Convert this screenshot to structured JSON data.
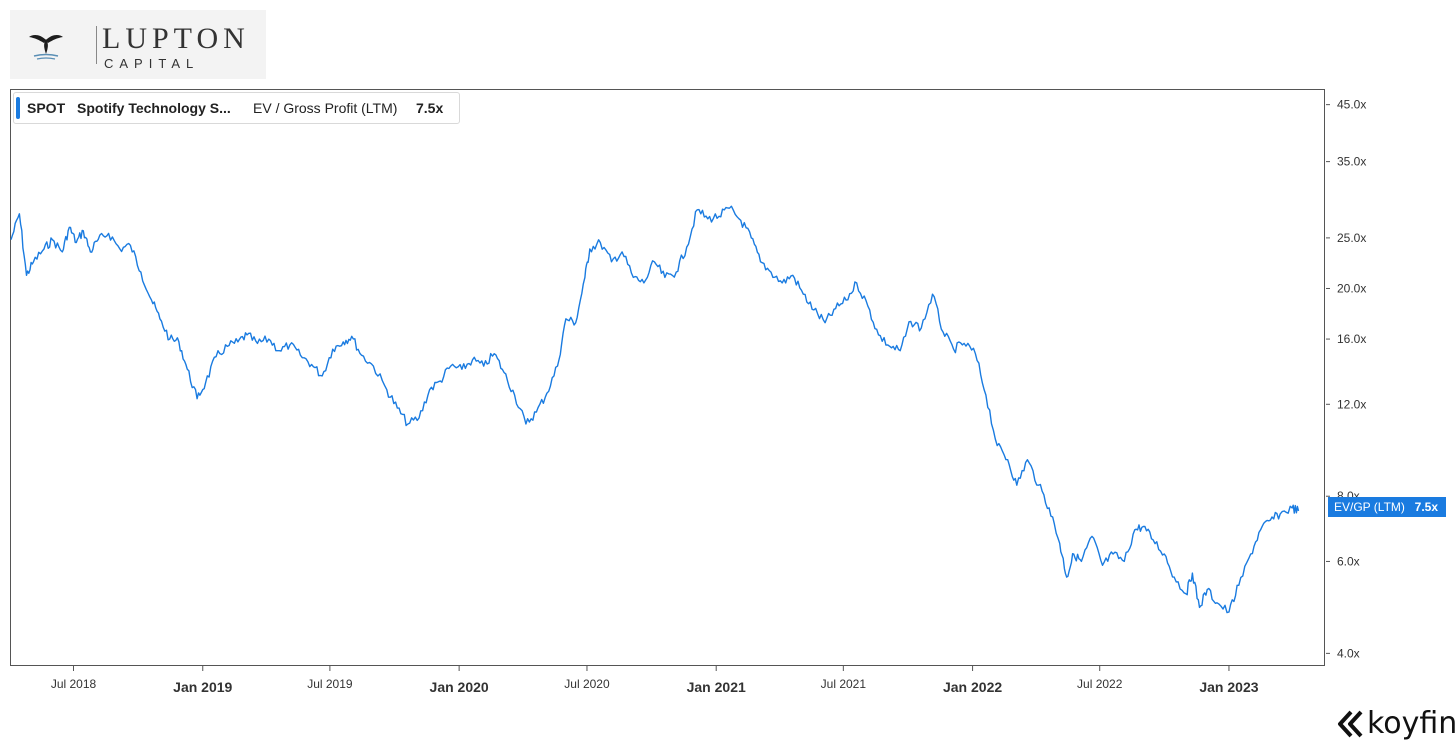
{
  "header": {
    "logo_word_top": "LUPTON",
    "logo_word_bottom": "CAPITAL"
  },
  "legend": {
    "ticker": "SPOT",
    "company": "Spotify Technology S...",
    "metric": "EV / Gross Profit (LTM)",
    "value": "7.5x"
  },
  "last_value_tag": {
    "label": "EV/GP (LTM)",
    "value": "7.5x"
  },
  "footer": {
    "brand": "koyfin"
  },
  "colors": {
    "line": "#1a7be0",
    "axis": "#555555",
    "tick_text": "#333333"
  },
  "chart_data": {
    "type": "line",
    "title": "",
    "xlabel": "",
    "ylabel": "",
    "y_scale": "log",
    "ylim": [
      3.8,
      48
    ],
    "xlim": [
      "2018-04-03",
      "2023-04-15"
    ],
    "grid": false,
    "legend_position": "top-left",
    "y_ticks": [
      {
        "value": 45,
        "label": "45.0x"
      },
      {
        "value": 35,
        "label": "35.0x"
      },
      {
        "value": 25,
        "label": "25.0x"
      },
      {
        "value": 20,
        "label": "20.0x"
      },
      {
        "value": 16,
        "label": "16.0x"
      },
      {
        "value": 12,
        "label": "12.0x"
      },
      {
        "value": 8,
        "label": "8.0x"
      },
      {
        "value": 6,
        "label": "6.0x"
      },
      {
        "value": 4,
        "label": "4.0x"
      }
    ],
    "x_ticks": [
      {
        "date": "2018-07-01",
        "label": "Jul 2018",
        "major": false
      },
      {
        "date": "2019-01-01",
        "label": "Jan 2019",
        "major": true
      },
      {
        "date": "2019-07-01",
        "label": "Jul 2019",
        "major": false
      },
      {
        "date": "2020-01-01",
        "label": "Jan 2020",
        "major": true
      },
      {
        "date": "2020-07-01",
        "label": "Jul 2020",
        "major": false
      },
      {
        "date": "2021-01-01",
        "label": "Jan 2021",
        "major": true
      },
      {
        "date": "2021-07-01",
        "label": "Jul 2021",
        "major": false
      },
      {
        "date": "2022-01-01",
        "label": "Jan 2022",
        "major": true
      },
      {
        "date": "2022-07-01",
        "label": "Jul 2022",
        "major": false
      },
      {
        "date": "2023-01-01",
        "label": "Jan 2023",
        "major": true
      }
    ],
    "series": [
      {
        "name": "EV / Gross Profit (LTM)",
        "points": [
          [
            "2018-04-03",
            24.8
          ],
          [
            "2018-04-15",
            27.8
          ],
          [
            "2018-04-25",
            21.2
          ],
          [
            "2018-05-05",
            22.5
          ],
          [
            "2018-05-20",
            23.8
          ],
          [
            "2018-06-01",
            24.8
          ],
          [
            "2018-06-15",
            23.5
          ],
          [
            "2018-06-25",
            26.2
          ],
          [
            "2018-07-05",
            24.5
          ],
          [
            "2018-07-15",
            25.8
          ],
          [
            "2018-07-25",
            23.5
          ],
          [
            "2018-08-05",
            24.8
          ],
          [
            "2018-08-20",
            25.5
          ],
          [
            "2018-09-05",
            23.8
          ],
          [
            "2018-09-20",
            24.2
          ],
          [
            "2018-10-05",
            21.5
          ],
          [
            "2018-10-20",
            19.0
          ],
          [
            "2018-11-01",
            17.5
          ],
          [
            "2018-11-15",
            16.0
          ],
          [
            "2018-11-28",
            15.8
          ],
          [
            "2018-12-10",
            14.0
          ],
          [
            "2018-12-24",
            12.3
          ],
          [
            "2019-01-05",
            13.2
          ],
          [
            "2019-01-20",
            14.8
          ],
          [
            "2019-02-05",
            15.5
          ],
          [
            "2019-02-20",
            15.8
          ],
          [
            "2019-03-05",
            16.3
          ],
          [
            "2019-03-20",
            15.7
          ],
          [
            "2019-04-05",
            16.0
          ],
          [
            "2019-04-20",
            15.2
          ],
          [
            "2019-05-05",
            15.6
          ],
          [
            "2019-05-20",
            14.9
          ],
          [
            "2019-06-05",
            14.3
          ],
          [
            "2019-06-20",
            13.6
          ],
          [
            "2019-07-05",
            15.3
          ],
          [
            "2019-07-20",
            15.8
          ],
          [
            "2019-08-01",
            16.2
          ],
          [
            "2019-08-15",
            14.9
          ],
          [
            "2019-09-01",
            14.2
          ],
          [
            "2019-09-20",
            12.8
          ],
          [
            "2019-10-05",
            11.8
          ],
          [
            "2019-10-20",
            11.0
          ],
          [
            "2019-11-05",
            11.3
          ],
          [
            "2019-11-20",
            12.8
          ],
          [
            "2019-12-05",
            13.3
          ],
          [
            "2019-12-20",
            14.2
          ],
          [
            "2020-01-05",
            14.0
          ],
          [
            "2020-01-20",
            14.6
          ],
          [
            "2020-02-05",
            14.2
          ],
          [
            "2020-02-20",
            15.0
          ],
          [
            "2020-03-05",
            13.8
          ],
          [
            "2020-03-20",
            12.5
          ],
          [
            "2020-04-05",
            11.0
          ],
          [
            "2020-04-20",
            11.6
          ],
          [
            "2020-05-05",
            12.6
          ],
          [
            "2020-05-20",
            14.2
          ],
          [
            "2020-06-01",
            17.5
          ],
          [
            "2020-06-15",
            17.2
          ],
          [
            "2020-06-28",
            21.0
          ],
          [
            "2020-07-05",
            23.8
          ],
          [
            "2020-07-20",
            24.5
          ],
          [
            "2020-08-05",
            22.5
          ],
          [
            "2020-08-20",
            23.5
          ],
          [
            "2020-09-05",
            21.0
          ],
          [
            "2020-09-20",
            20.5
          ],
          [
            "2020-10-05",
            22.5
          ],
          [
            "2020-10-20",
            21.0
          ],
          [
            "2020-11-05",
            21.5
          ],
          [
            "2020-11-20",
            24.0
          ],
          [
            "2020-12-05",
            28.3
          ],
          [
            "2020-12-20",
            27.2
          ],
          [
            "2021-01-05",
            27.5
          ],
          [
            "2021-01-20",
            28.5
          ],
          [
            "2021-02-05",
            27.0
          ],
          [
            "2021-02-20",
            25.0
          ],
          [
            "2021-03-05",
            22.5
          ],
          [
            "2021-03-20",
            21.5
          ],
          [
            "2021-04-05",
            20.5
          ],
          [
            "2021-04-20",
            21.2
          ],
          [
            "2021-05-05",
            19.5
          ],
          [
            "2021-05-20",
            18.2
          ],
          [
            "2021-06-05",
            17.2
          ],
          [
            "2021-06-20",
            18.3
          ],
          [
            "2021-07-05",
            19.0
          ],
          [
            "2021-07-20",
            20.5
          ],
          [
            "2021-08-05",
            18.5
          ],
          [
            "2021-08-20",
            16.3
          ],
          [
            "2021-09-05",
            15.5
          ],
          [
            "2021-09-20",
            15.2
          ],
          [
            "2021-10-05",
            17.3
          ],
          [
            "2021-10-20",
            16.8
          ],
          [
            "2021-11-05",
            19.5
          ],
          [
            "2021-11-20",
            16.5
          ],
          [
            "2021-12-05",
            15.3
          ],
          [
            "2021-12-20",
            15.7
          ],
          [
            "2022-01-05",
            15.0
          ],
          [
            "2022-01-20",
            12.5
          ],
          [
            "2022-02-05",
            10.0
          ],
          [
            "2022-02-20",
            9.4
          ],
          [
            "2022-03-05",
            8.4
          ],
          [
            "2022-03-20",
            9.4
          ],
          [
            "2022-04-05",
            8.4
          ],
          [
            "2022-04-20",
            7.6
          ],
          [
            "2022-05-05",
            6.5
          ],
          [
            "2022-05-15",
            5.6
          ],
          [
            "2022-05-25",
            6.2
          ],
          [
            "2022-06-05",
            6.0
          ],
          [
            "2022-06-20",
            6.7
          ],
          [
            "2022-07-05",
            5.9
          ],
          [
            "2022-07-20",
            6.2
          ],
          [
            "2022-08-05",
            6.0
          ],
          [
            "2022-08-20",
            6.9
          ],
          [
            "2022-09-01",
            7.0
          ],
          [
            "2022-09-15",
            6.6
          ],
          [
            "2022-10-01",
            6.2
          ],
          [
            "2022-10-15",
            5.6
          ],
          [
            "2022-11-01",
            5.2
          ],
          [
            "2022-11-10",
            5.7
          ],
          [
            "2022-11-20",
            4.9
          ],
          [
            "2022-12-01",
            5.3
          ],
          [
            "2022-12-15",
            5.0
          ],
          [
            "2023-01-01",
            4.8
          ],
          [
            "2023-01-15",
            5.4
          ],
          [
            "2023-02-01",
            6.2
          ],
          [
            "2023-02-15",
            6.9
          ],
          [
            "2023-03-01",
            7.2
          ],
          [
            "2023-03-15",
            7.4
          ],
          [
            "2023-04-01",
            7.6
          ],
          [
            "2023-04-10",
            7.5
          ]
        ]
      }
    ]
  }
}
